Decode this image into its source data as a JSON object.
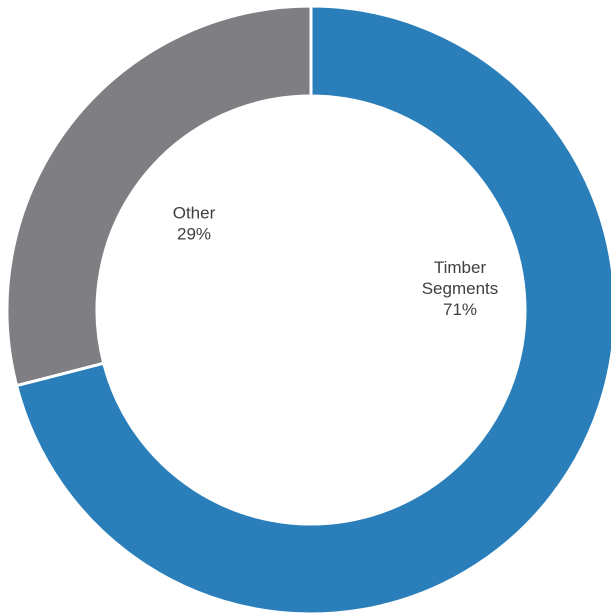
{
  "chart_data": {
    "type": "pie",
    "variant": "donut",
    "title": "",
    "slices": [
      {
        "name": "Timber Segments",
        "label_lines": [
          "Timber",
          "Segments"
        ],
        "value": 71,
        "value_label": "71%",
        "color": "#2a7fba"
      },
      {
        "name": "Other",
        "label_lines": [
          "Other"
        ],
        "value": 29,
        "value_label": "29%",
        "color": "#7f7f83"
      }
    ],
    "start_angle_deg": 0,
    "direction": "clockwise",
    "legend": "none",
    "background": "#ffffff",
    "separator_color": "#ffffff"
  }
}
